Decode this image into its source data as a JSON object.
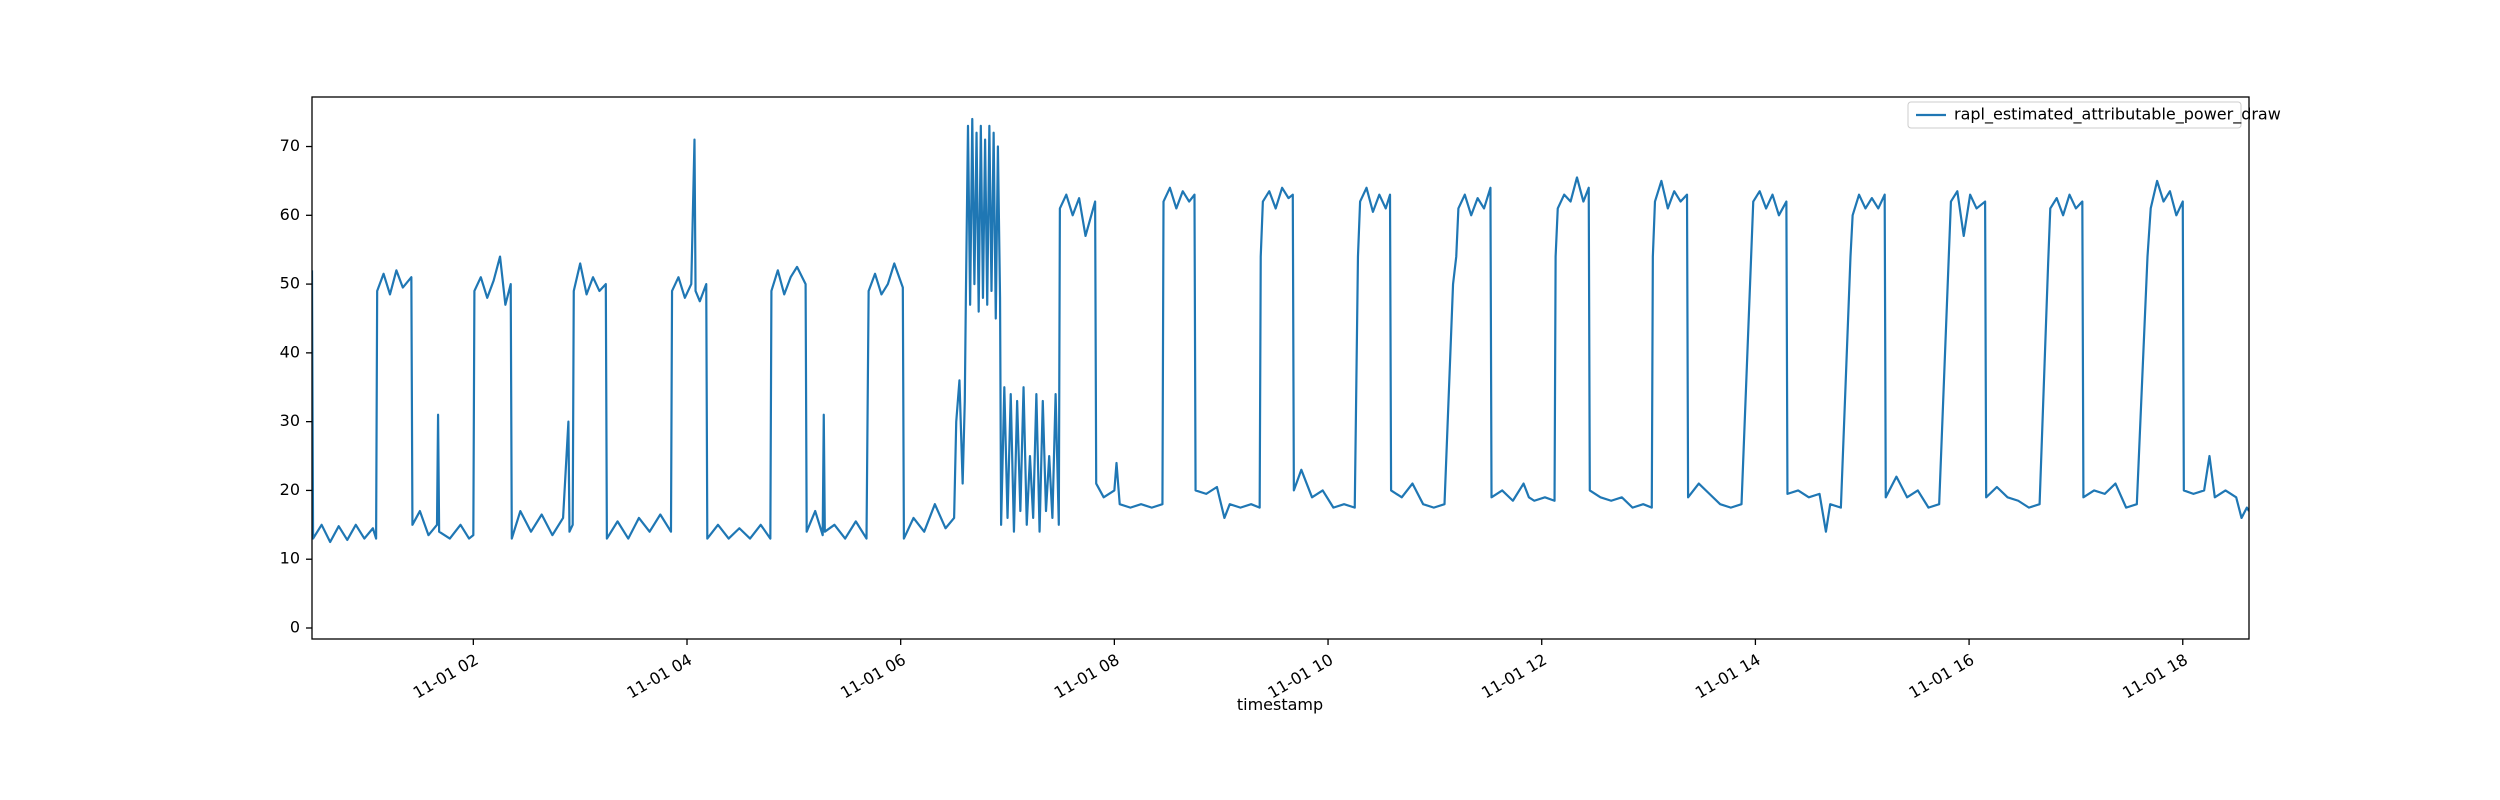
{
  "chart_data": {
    "type": "line",
    "xlabel": "timestamp",
    "xlim": [
      0.49,
      18.62
    ],
    "xticks": [
      {
        "value": 2,
        "label": "11-01 02"
      },
      {
        "value": 4,
        "label": "11-01 04"
      },
      {
        "value": 6,
        "label": "11-01 06"
      },
      {
        "value": 8,
        "label": "11-01 08"
      },
      {
        "value": 10,
        "label": "11-01 10"
      },
      {
        "value": 12,
        "label": "11-01 12"
      },
      {
        "value": 14,
        "label": "11-01 14"
      },
      {
        "value": 16,
        "label": "11-01 16"
      },
      {
        "value": 18,
        "label": "11-01 18"
      }
    ],
    "ylim": [
      -1.6,
      77.2
    ],
    "yticks": [
      0,
      10,
      20,
      30,
      40,
      50,
      60,
      70
    ],
    "grid": false,
    "legend": "upper right",
    "x": [
      0.49,
      0.5,
      0.58,
      0.66,
      0.74,
      0.82,
      0.9,
      0.98,
      1.06,
      1.09,
      1.1,
      1.16,
      1.22,
      1.28,
      1.34,
      1.42,
      1.43,
      1.5,
      1.58,
      1.66,
      1.67,
      1.68,
      1.78,
      1.88,
      1.96,
      2.0,
      2.01,
      2.07,
      2.13,
      2.19,
      2.25,
      2.3,
      2.35,
      2.36,
      2.44,
      2.54,
      2.64,
      2.74,
      2.84,
      2.89,
      2.9,
      2.93,
      2.94,
      3.0,
      3.06,
      3.12,
      3.18,
      3.24,
      3.25,
      3.35,
      3.45,
      3.55,
      3.65,
      3.75,
      3.85,
      3.86,
      3.92,
      3.98,
      4.04,
      4.07,
      4.08,
      4.12,
      4.18,
      4.19,
      4.29,
      4.39,
      4.49,
      4.59,
      4.69,
      4.78,
      4.79,
      4.85,
      4.91,
      4.97,
      5.03,
      5.11,
      5.12,
      5.2,
      5.27,
      5.28,
      5.29,
      5.38,
      5.48,
      5.58,
      5.68,
      5.7,
      5.76,
      5.82,
      5.88,
      5.94,
      6.02,
      6.03,
      6.12,
      6.22,
      6.32,
      6.42,
      6.5,
      6.52,
      6.55,
      6.58,
      6.6,
      6.61,
      6.63,
      6.65,
      6.67,
      6.69,
      6.71,
      6.73,
      6.75,
      6.77,
      6.79,
      6.81,
      6.83,
      6.85,
      6.87,
      6.89,
      6.91,
      6.93,
      6.94,
      6.97,
      7.0,
      7.03,
      7.06,
      7.09,
      7.12,
      7.15,
      7.18,
      7.21,
      7.24,
      7.27,
      7.3,
      7.33,
      7.36,
      7.39,
      7.42,
      7.45,
      7.48,
      7.49,
      7.55,
      7.61,
      7.67,
      7.73,
      7.82,
      7.83,
      7.9,
      8.0,
      8.02,
      8.05,
      8.15,
      8.25,
      8.35,
      8.45,
      8.46,
      8.52,
      8.58,
      8.64,
      8.7,
      8.75,
      8.76,
      8.86,
      8.96,
      9.03,
      9.08,
      9.18,
      9.28,
      9.36,
      9.37,
      9.39,
      9.45,
      9.51,
      9.57,
      9.63,
      9.67,
      9.68,
      9.75,
      9.85,
      9.95,
      10.05,
      10.15,
      10.25,
      10.28,
      10.3,
      10.36,
      10.42,
      10.48,
      10.54,
      10.58,
      10.59,
      10.69,
      10.79,
      10.89,
      10.99,
      11.09,
      11.17,
      11.2,
      11.22,
      11.28,
      11.34,
      11.4,
      11.46,
      11.52,
      11.53,
      11.63,
      11.73,
      11.83,
      11.88,
      11.93,
      12.03,
      12.12,
      12.13,
      12.15,
      12.21,
      12.27,
      12.33,
      12.39,
      12.44,
      12.45,
      12.55,
      12.65,
      12.75,
      12.85,
      12.95,
      13.03,
      13.04,
      13.06,
      13.12,
      13.18,
      13.24,
      13.3,
      13.36,
      13.37,
      13.47,
      13.57,
      13.67,
      13.77,
      13.87,
      13.96,
      13.98,
      14.04,
      14.1,
      14.16,
      14.22,
      14.29,
      14.3,
      14.4,
      14.5,
      14.6,
      14.66,
      14.7,
      14.8,
      14.89,
      14.91,
      14.97,
      15.03,
      15.09,
      15.15,
      15.21,
      15.22,
      15.32,
      15.42,
      15.52,
      15.62,
      15.72,
      15.81,
      15.83,
      15.89,
      15.95,
      16.01,
      16.07,
      16.15,
      16.16,
      16.26,
      16.36,
      16.46,
      16.56,
      16.66,
      16.74,
      16.76,
      16.82,
      16.88,
      16.94,
      17.0,
      17.06,
      17.07,
      17.17,
      17.27,
      17.37,
      17.47,
      17.57,
      17.67,
      17.7,
      17.76,
      17.82,
      17.88,
      17.94,
      18.0,
      18.01,
      18.1,
      18.2,
      18.25,
      18.3,
      18.4,
      18.5,
      18.55,
      18.6,
      18.62
    ],
    "series": [
      {
        "name": "rapl_estimated_attributable_power_draw",
        "color": "#1f77b4",
        "values": [
          52,
          13,
          15,
          12.5,
          14.8,
          12.8,
          15,
          13,
          14.5,
          13,
          49,
          51.5,
          48.5,
          52,
          49.5,
          51,
          15,
          17,
          13.5,
          15,
          31,
          14,
          13,
          15,
          13,
          13.5,
          49,
          51,
          48,
          50.5,
          54,
          47,
          50,
          13,
          17,
          14,
          16.5,
          13.5,
          16,
          30,
          14,
          15,
          49,
          53,
          48.5,
          51,
          49,
          50,
          13,
          15.5,
          13,
          16,
          14,
          16.5,
          14,
          49,
          51,
          48,
          50,
          71,
          49,
          47.5,
          50,
          13,
          15,
          13,
          14.5,
          13,
          15,
          13,
          49,
          52,
          48.5,
          51,
          52.5,
          50,
          14,
          17,
          13.5,
          31,
          14,
          15,
          13,
          15.5,
          13,
          49,
          51.5,
          48.5,
          50,
          53,
          49.5,
          13,
          16,
          14,
          18,
          14.5,
          16,
          30,
          36,
          21,
          33,
          48,
          73,
          47,
          74,
          50,
          72,
          46,
          73,
          48,
          71,
          47,
          73,
          49,
          72,
          45,
          70,
          48,
          15,
          35,
          16,
          34,
          14,
          33,
          17,
          35,
          15,
          25,
          16,
          34,
          14,
          33,
          17,
          25,
          16,
          34,
          15,
          61,
          63,
          60,
          62.5,
          57,
          62,
          21,
          19,
          20,
          24,
          18,
          17.5,
          18,
          17.5,
          18,
          62,
          64,
          61,
          63.5,
          62,
          63,
          20,
          19.5,
          20.5,
          16,
          18,
          17.5,
          18,
          17.5,
          54,
          62,
          63.5,
          61,
          64,
          62.5,
          63,
          20,
          23,
          19,
          20,
          17.5,
          18,
          17.5,
          54,
          62,
          64,
          60.5,
          63,
          61,
          63,
          20,
          19,
          21,
          18,
          17.5,
          18,
          50,
          54,
          61,
          63,
          60,
          62.5,
          61,
          64,
          19,
          20,
          18.5,
          21,
          19,
          18.5,
          19,
          18.5,
          54,
          61,
          63,
          62,
          65.5,
          62,
          64,
          20,
          19,
          18.5,
          19,
          17.5,
          18,
          17.5,
          54,
          62,
          65,
          61,
          63.5,
          62,
          63,
          19,
          21,
          19.5,
          18,
          17.5,
          18,
          54,
          62,
          63.5,
          61,
          63,
          60,
          62,
          19.5,
          20,
          19,
          19.5,
          14,
          18,
          17.5,
          54,
          60,
          63,
          61,
          62.5,
          61,
          63,
          19,
          22,
          19,
          20,
          17.5,
          18,
          54,
          62,
          63.5,
          57,
          63,
          61,
          62,
          19,
          20.5,
          19,
          18.5,
          17.5,
          18,
          53,
          61,
          62.5,
          60,
          63,
          61,
          62,
          19,
          20,
          19.5,
          21,
          17.5,
          18,
          54,
          61,
          65,
          62,
          63.5,
          60,
          62,
          20,
          19.5,
          20,
          25,
          19,
          20,
          19,
          16,
          17.5,
          17
        ]
      }
    ]
  }
}
